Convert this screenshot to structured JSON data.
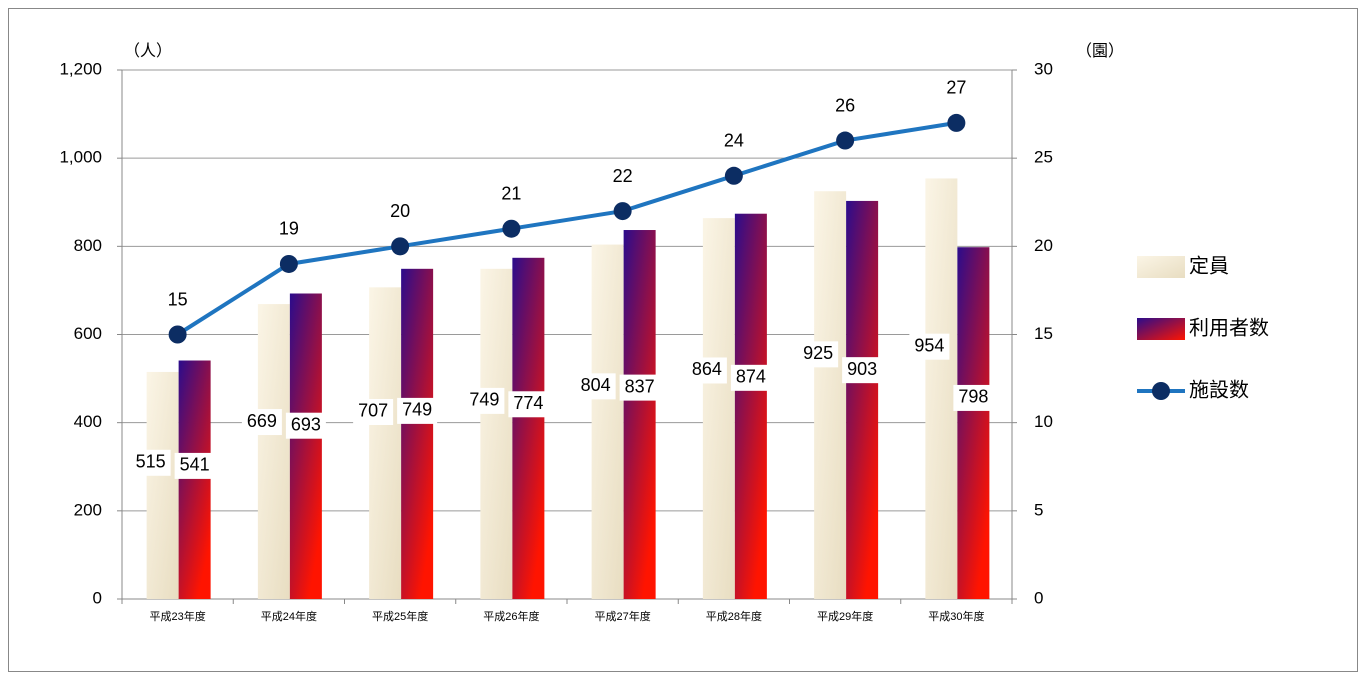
{
  "chart_data": {
    "type": "bar-line",
    "y_unit": "（人）",
    "y2_unit": "（園）",
    "categories": [
      "平成23年度",
      "平成24年度",
      "平成25年度",
      "平成26年度",
      "平成27年度",
      "平成28年度",
      "平成29年度",
      "平成30年度"
    ],
    "series": [
      {
        "name": "定員",
        "type": "bar",
        "color": [
          "#fbf5e6",
          "#e8ddc1"
        ],
        "values": [
          515,
          669,
          707,
          749,
          804,
          864,
          925,
          954
        ]
      },
      {
        "name": "利用者数",
        "type": "bar",
        "color": [
          "#2b0c8c",
          "#ff1400"
        ],
        "values": [
          541,
          693,
          749,
          774,
          837,
          874,
          903,
          798
        ]
      },
      {
        "name": "施設数",
        "type": "line",
        "axis": "y2",
        "color": "#1f75c0",
        "marker_color": "#0c2d63",
        "values": [
          15,
          19,
          20,
          21,
          22,
          24,
          26,
          27
        ]
      }
    ],
    "ylim": [
      0,
      1200
    ],
    "yticks": [
      0,
      200,
      400,
      600,
      800,
      {
        "value": 1000,
        "label": "1,000"
      },
      {
        "value": 1200,
        "label": "1,200"
      }
    ],
    "y2lim": [
      0,
      30
    ],
    "y2ticks": [
      0,
      5,
      10,
      15,
      20,
      25,
      30
    ],
    "grid": true,
    "legend": "right"
  }
}
